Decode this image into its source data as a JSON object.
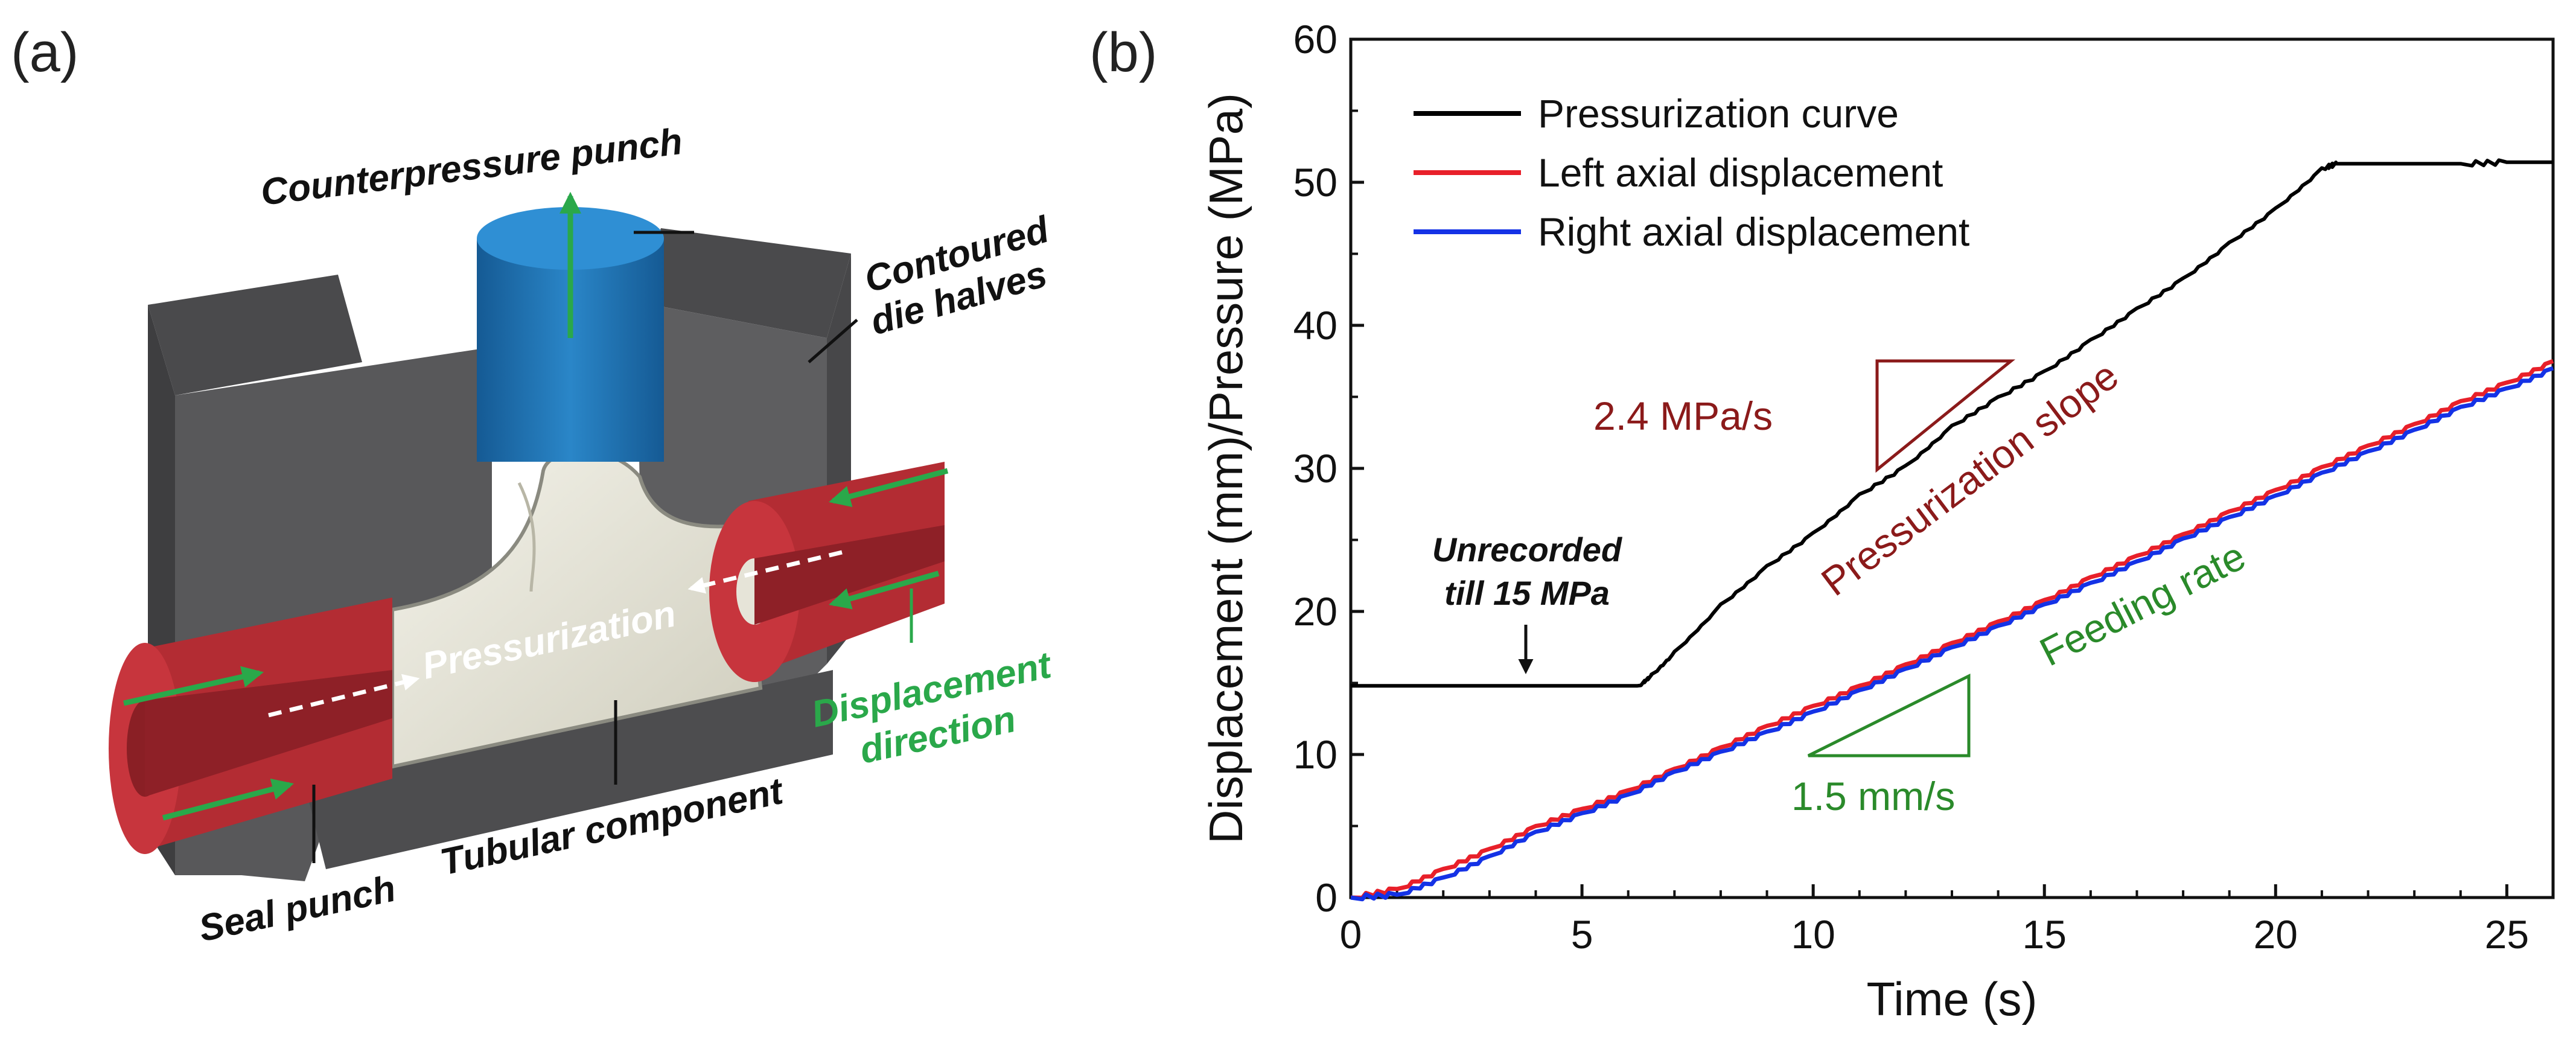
{
  "panel_a": {
    "label": "(a)",
    "labels": {
      "counterpressure_punch": "Counterpressure punch",
      "contoured_line1": "Contoured",
      "contoured_line2": "die halves",
      "pressurization": "Pressurization",
      "seal_punch": "Seal punch",
      "tubular_component": "Tubular component",
      "displacement_line1": "Displacement",
      "displacement_line2": "direction"
    },
    "colors": {
      "die": "#5a5a5c",
      "punch": "#1f6fb2",
      "seal": "#b32c33",
      "tube": "#d8d6c6",
      "arrow": "#2aa84a"
    }
  },
  "panel_b": {
    "label": "(b)"
  },
  "chart_data": {
    "type": "line",
    "title": "",
    "xlabel": "Time (s)",
    "ylabel": "Displacement (mm)/Pressure (MPa)",
    "xlim": [
      0,
      26
    ],
    "ylim": [
      0,
      60
    ],
    "xticks": [
      0,
      5,
      10,
      15,
      20,
      25
    ],
    "yticks": [
      0,
      10,
      20,
      30,
      40,
      50,
      60
    ],
    "series": [
      {
        "name": "Pressurization curve",
        "color": "#000000",
        "x": [
          0,
          1,
          2,
          3,
          4,
          5,
          6.2,
          6.5,
          7,
          8,
          9,
          10,
          11,
          12,
          13,
          14,
          15,
          16,
          17,
          18,
          19,
          20,
          21,
          21.3,
          22,
          23,
          24,
          25,
          26
        ],
        "y": [
          14.8,
          14.8,
          14.8,
          14.8,
          14.8,
          14.8,
          14.8,
          15.6,
          17.2,
          20.5,
          23.2,
          25.5,
          28.2,
          30.2,
          33.0,
          35.0,
          36.8,
          39.0,
          41.2,
          43.3,
          45.8,
          48.2,
          51.0,
          51.3,
          51.3,
          51.3,
          51.3,
          51.4,
          51.4
        ]
      },
      {
        "name": "Left axial displacement",
        "color": "#e8202a",
        "x": [
          0,
          1,
          2,
          3,
          4,
          5,
          6,
          7,
          8,
          9,
          10,
          11,
          12,
          13,
          14,
          15,
          16,
          17,
          18,
          19,
          20,
          21,
          22,
          23,
          24,
          25,
          26
        ],
        "y": [
          0,
          0.6,
          2.0,
          3.4,
          5.0,
          6.2,
          7.5,
          9.0,
          10.5,
          12.0,
          13.4,
          14.8,
          16.3,
          17.8,
          19.3,
          20.8,
          22.4,
          23.9,
          25.4,
          27.0,
          28.5,
          30.1,
          31.6,
          33.1,
          34.7,
          36.0,
          37.5
        ]
      },
      {
        "name": "Right axial displacement",
        "color": "#1432e6",
        "x": [
          0,
          1,
          2,
          3,
          4,
          5,
          6,
          7,
          8,
          9,
          10,
          11,
          12,
          13,
          14,
          15,
          16,
          17,
          18,
          19,
          20,
          21,
          22,
          23,
          24,
          25,
          26
        ],
        "y": [
          0,
          0.2,
          1.4,
          2.9,
          4.6,
          5.9,
          7.2,
          8.8,
          10.2,
          11.6,
          13.0,
          14.5,
          16.0,
          17.5,
          19.0,
          20.5,
          22.0,
          23.5,
          25.1,
          26.6,
          28.1,
          29.7,
          31.2,
          32.7,
          34.3,
          35.6,
          37.0
        ]
      }
    ],
    "legend": {
      "position": "top-left",
      "items": [
        "Pressurization curve",
        "Left axial displacement",
        "Right axial displacement"
      ]
    },
    "annotations": {
      "pressurization_slope": "Pressurization slope",
      "pressure_rate": "2.4 MPa/s",
      "feeding_rate": "Feeding rate",
      "feed_rate": "1.5 mm/s",
      "unrecorded_line1": "Unrecorded",
      "unrecorded_line2": "till 15 MPa",
      "slope_color": "#8b1a1a",
      "feed_color": "#2a8a2a"
    }
  }
}
